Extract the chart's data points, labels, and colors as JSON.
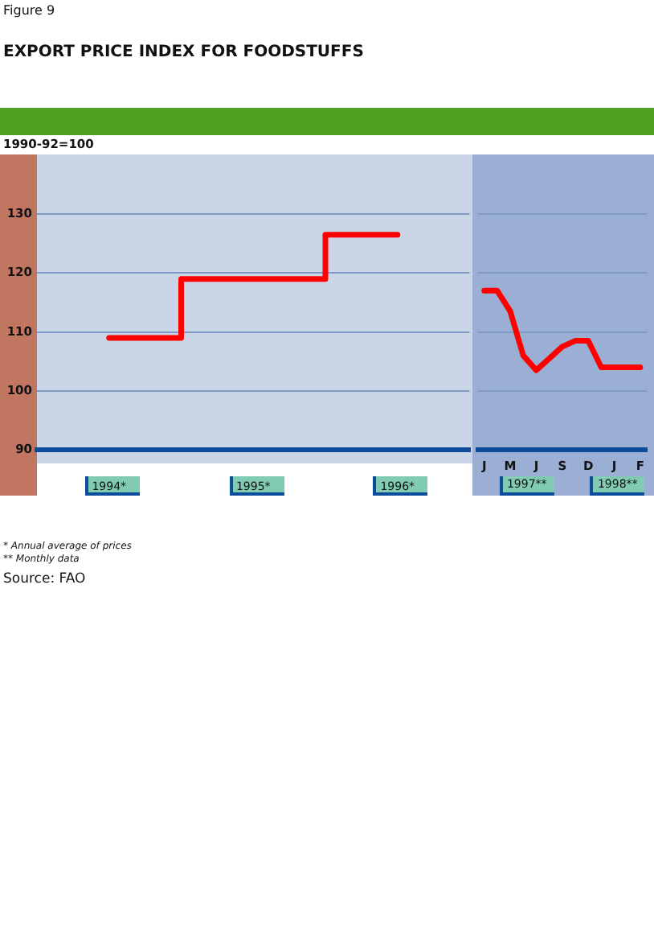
{
  "chart_data": [
    {
      "type": "step",
      "title": "EXPORT PRICE INDEX FOR FOODSTUFFS",
      "ylabel": "1990-92=100",
      "annotations": [
        "Figure 9",
        "* Annual average of prices",
        "** Monthly data",
        "Source: FAO"
      ],
      "categories": [
        "1994*",
        "1995*",
        "1996*"
      ],
      "series": [
        {
          "color": "#ff0000",
          "values": [
            109,
            119,
            126.5
          ]
        }
      ],
      "ylim": [
        90,
        140
      ],
      "yticks": [
        90,
        100,
        110,
        120,
        130
      ],
      "grid": "y",
      "marker": "none"
    },
    {
      "type": "line",
      "annotations": [
        "1997**",
        "1998**"
      ],
      "categories": [
        "J",
        null,
        "M",
        null,
        "J",
        null,
        "S",
        null,
        "D",
        null,
        "J",
        null,
        "F"
      ],
      "series": [
        {
          "color": "#ff0000",
          "values": [
            117,
            117,
            113.5,
            106,
            103.5,
            105.5,
            107.5,
            108.5,
            108.5,
            104,
            104,
            104,
            104
          ]
        }
      ],
      "ylim": [
        90,
        140
      ],
      "yticks": [
        90,
        100,
        110,
        120,
        130
      ],
      "grid": "y",
      "marker": "none",
      "tick_labels": "x"
    }
  ]
}
